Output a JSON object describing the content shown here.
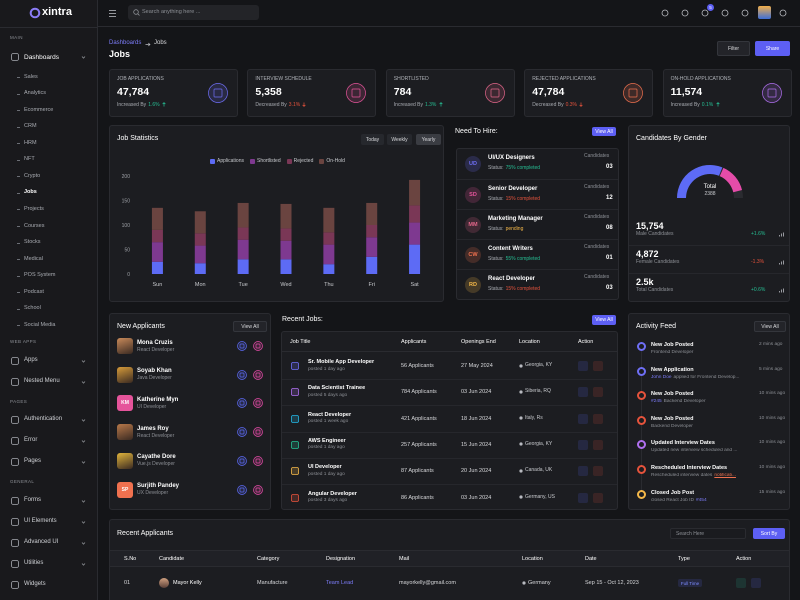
{
  "sidebar": {
    "logo": "xintra",
    "main_label": "MAIN",
    "dashboards": "Dashboards",
    "dashboard_items": [
      "Sales",
      "Analytics",
      "Ecommerce",
      "CRM",
      "HRM",
      "NFT",
      "Crypto",
      "Jobs",
      "Projects",
      "Courses",
      "Stocks",
      "Medical",
      "POS System",
      "Podcast",
      "School",
      "Social Media"
    ],
    "sections": [
      {
        "title": "WEB APPS",
        "items": [
          "Apps",
          "Nested Menu"
        ]
      },
      {
        "title": "PAGES",
        "items": [
          "Authentication",
          "Error",
          "Pages"
        ]
      },
      {
        "title": "GENERAL",
        "items": [
          "Forms",
          "UI Elements",
          "Advanced UI",
          "Utilities",
          "Widgets"
        ]
      }
    ]
  },
  "header": {
    "search_placeholder": "Search anything here ...",
    "notification_count": "5"
  },
  "page": {
    "breadcrumb": [
      "Dashboards",
      "Jobs"
    ],
    "title": "Jobs",
    "filter": "Filter",
    "share": "Share"
  },
  "stats": [
    {
      "label": "JOB APPLICATIONS",
      "value": "47,784",
      "trend_text": "Increased By",
      "change": "1.6%",
      "trend": "up",
      "color": "#6f6ff6"
    },
    {
      "label": "INTERVIEW SCHEDULE",
      "value": "5,358",
      "trend_text": "Decreased By",
      "change": "3.1%",
      "trend": "down",
      "color": "#e5549b"
    },
    {
      "label": "SHORTLISTED",
      "value": "784",
      "trend_text": "Increased By",
      "change": "1.3%",
      "trend": "up",
      "color": "#e3668a"
    },
    {
      "label": "REJECTED APPLICATIONS",
      "value": "47,784",
      "trend_text": "Decreased By",
      "change": "0.3%",
      "trend": "down",
      "color": "#f0714f"
    },
    {
      "label": "ON-HOLD APPLICATIONS",
      "value": "11,574",
      "trend_text": "Increased By",
      "change": "0.1%",
      "trend": "up",
      "color": "#b070f0"
    }
  ],
  "chart_data": {
    "type": "bar",
    "stacked": true,
    "title": "Job Statistics",
    "periods": [
      "Today",
      "Weekly",
      "Yearly"
    ],
    "categories": [
      "Sun",
      "Mon",
      "Tue",
      "Wed",
      "Thu",
      "Fri",
      "Sat"
    ],
    "series": [
      {
        "name": "Applications",
        "color": "#5d6bf5",
        "values": [
          25,
          22,
          30,
          30,
          20,
          35,
          60
        ]
      },
      {
        "name": "Shortlisted",
        "color": "#7e3990",
        "values": [
          40,
          36,
          40,
          38,
          40,
          40,
          45
        ]
      },
      {
        "name": "Rejected",
        "color": "#7a3756",
        "values": [
          25,
          25,
          25,
          25,
          25,
          25,
          35
        ]
      },
      {
        "name": "On-Hold",
        "color": "#6a4440",
        "values": [
          45,
          45,
          50,
          50,
          50,
          45,
          52
        ]
      }
    ],
    "ylim": [
      0,
      200
    ],
    "yticks": [
      0,
      50,
      100,
      150,
      200
    ],
    "grid": false,
    "legend": "top"
  },
  "need_to_hire": {
    "title": "Need To Hire:",
    "view_all": "View All",
    "items": [
      {
        "initials": "UD",
        "name": "UI/UX Designers",
        "status_label": "Status:",
        "status": "75% completed",
        "candidates_label": "Candidates",
        "candidates": "03",
        "color": "#6f6ff6",
        "status_color": "#26bf94"
      },
      {
        "initials": "SD",
        "name": "Senior Developer",
        "status_label": "Status:",
        "status": "15% completed",
        "candidates_label": "Candidates",
        "candidates": "12",
        "color": "#e5549b",
        "status_color": "#e6533c"
      },
      {
        "initials": "MM",
        "name": "Marketing Manager",
        "status_label": "Status:",
        "status": "pending",
        "candidates_label": "Candidates",
        "candidates": "08",
        "color": "#e3668a",
        "status_color": "#f5b849"
      },
      {
        "initials": "CW",
        "name": "Content Writers",
        "status_label": "Status:",
        "status": "55% completed",
        "candidates_label": "Candidates",
        "candidates": "01",
        "color": "#f0714f",
        "status_color": "#26bf94"
      },
      {
        "initials": "RD",
        "name": "React Developer",
        "status_label": "Status:",
        "status": "15% completed",
        "candidates_label": "Candidates",
        "candidates": "03",
        "color": "#f5b849",
        "status_color": "#e6533c"
      }
    ]
  },
  "gender": {
    "title": "Candidates By Gender",
    "total_label": "Total",
    "total": "2388",
    "stats": [
      {
        "value": "15,754",
        "label": "Male Candidates",
        "change": "+1.6%",
        "trend": "up"
      },
      {
        "value": "4,872",
        "label": "Female Candidates",
        "change": "-1.3%",
        "trend": "down"
      },
      {
        "value": "2.5k",
        "label": "Total Candidates",
        "change": "+0.6%",
        "trend": "up"
      }
    ]
  },
  "new_applicants": {
    "title": "New Applicants",
    "view_all": "View All",
    "items": [
      {
        "name": "Mona Cruzis",
        "role": "React Developer",
        "color": "#c98a5a"
      },
      {
        "name": "Soyab Khan",
        "role": "Java Developer",
        "color": "#d69b3a"
      },
      {
        "name": "Katherine Myn",
        "role": "UI Developer",
        "initials": "KM",
        "color": "#e5549b"
      },
      {
        "name": "James Roy",
        "role": "React Developer",
        "color": "#b8794a"
      },
      {
        "name": "Cayathe Dore",
        "role": "Vue.js Developer",
        "color": "#e0b43c"
      },
      {
        "name": "Surjith Pandey",
        "role": "UX Developer",
        "initials": "SP",
        "color": "#f0714f"
      }
    ]
  },
  "recent_jobs": {
    "title": "Recent Jobs:",
    "view_all": "View All",
    "headers": [
      "Job Title",
      "Applicants",
      "Openings End",
      "Location",
      "Action"
    ],
    "rows": [
      {
        "title": "Sr. Mobile App Developer",
        "posted": "posted 1 day ago",
        "applicants": "56 Applicants",
        "openings_end": "27 May 2024",
        "location": "Georgia, KY",
        "color": "#6f6ff6"
      },
      {
        "title": "Data Scientist Trainee",
        "posted": "posted 5 days ago",
        "applicants": "784 Applicants",
        "openings_end": "03 Jun 2024",
        "location": "Siberia, RQ",
        "color": "#b070f0"
      },
      {
        "title": "React Developer",
        "posted": "posted 1 week ago",
        "applicants": "421 Applicants",
        "openings_end": "18 Jun 2024",
        "location": "Italy, Rs",
        "color": "#23b7e5"
      },
      {
        "title": "AWS Engineer",
        "posted": "posted 1 day ago",
        "applicants": "257 Applicants",
        "openings_end": "15 Jun 2024",
        "location": "Georgia, KY",
        "color": "#26bf94"
      },
      {
        "title": "UI Developer",
        "posted": "posted 1 day ago",
        "applicants": "87 Applicants",
        "openings_end": "20 Jun 2024",
        "location": "Canada, UK",
        "color": "#f5b849"
      },
      {
        "title": "Angular Developer",
        "posted": "posted 3 days ago",
        "applicants": "86 Applicants",
        "openings_end": "03 Jun 2024",
        "location": "Germany, US",
        "color": "#e6533c"
      }
    ]
  },
  "activity_feed": {
    "title": "Activity Feed",
    "view_all": "View All",
    "items": [
      {
        "title": "New Job Posted",
        "sub": [
          {
            "text": "Frontend Developer"
          }
        ],
        "time": "2 mins ago",
        "color": "#6f6ff6"
      },
      {
        "title": "New Application",
        "sub": [
          {
            "text": "John Doe",
            "link": true
          },
          {
            "text": "applied for Frontend Develop..."
          }
        ],
        "time": "5 mins ago",
        "color": "#6f6ff6"
      },
      {
        "title": "New Job Posted",
        "sub": [
          {
            "text": "#245",
            "link": true
          },
          {
            "text": "Backend Developer"
          }
        ],
        "time": "10 mins ago",
        "color": "#e6533c"
      },
      {
        "title": "New Job Posted",
        "sub": [
          {
            "text": "Backend Developer"
          }
        ],
        "time": "10 mins ago",
        "color": "#e6533c"
      },
      {
        "title": "Updated Interview Dates",
        "sub": [
          {
            "text": "Updated new interview scheduled and ..."
          }
        ],
        "time": "10 mins ago",
        "color": "#b070f0"
      },
      {
        "title": "Rescheduled Interview Dates",
        "sub": [
          {
            "text": "Rescheduled interview dates"
          },
          {
            "text": "notificati...",
            "link": true
          }
        ],
        "time": "10 mins ago",
        "color": "#e6533c"
      },
      {
        "title": "Closed Job Post",
        "sub": [
          {
            "text": "closed React Job ID"
          },
          {
            "text": "#454",
            "link": true
          }
        ],
        "time": "15 mins ago",
        "color": "#f5b849"
      }
    ]
  },
  "recent_applicants": {
    "title": "Recent Applicants",
    "search_placeholder": "Search Here",
    "sort_by": "Sort By",
    "headers": [
      "S.No",
      "Candidate",
      "Category",
      "Designation",
      "Mail",
      "Location",
      "Date",
      "Type",
      "Action"
    ],
    "rows": [
      {
        "sno": "01",
        "candidate": "Mayor Kelly",
        "category": "Manufacture",
        "designation": "Team Lead",
        "mail": "mayorkelly@gmail.com",
        "location": "Germany",
        "date": "Sep 15 - Oct 12, 2023",
        "type": "Full Time"
      }
    ]
  }
}
